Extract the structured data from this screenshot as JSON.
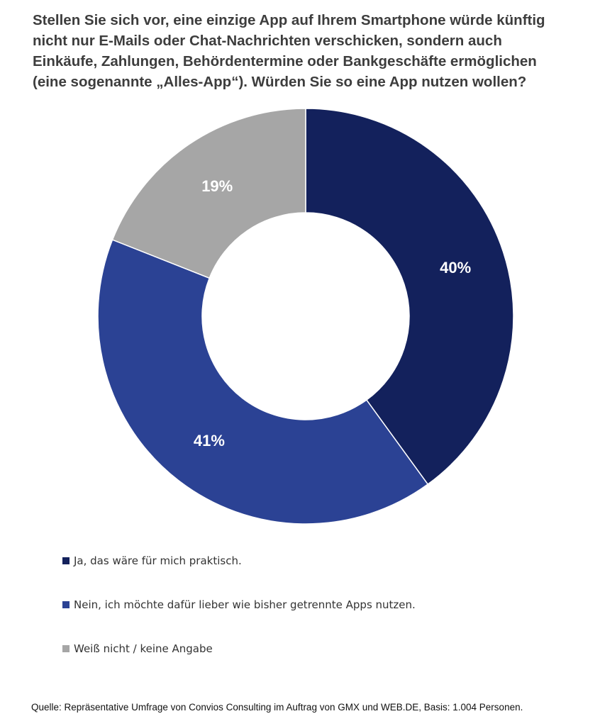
{
  "title": "Stellen Sie sich vor, eine einzige App auf Ihrem Smartphone würde künftig\nnicht nur E-Mails oder Chat-Nachrichten verschicken, sondern auch\nEinkäufe, Zahlungen, Behördentermine oder Bankgeschäfte ermöglichen\n(eine sogenannte „Alles-App“). Würden Sie so eine App nutzen wollen?",
  "source": "Quelle: Repräsentative Umfrage von Convios Consulting  im Auftrag von GMX und WEB.DE, Basis: 1.004 Personen.",
  "chart_data": {
    "type": "pie",
    "variant": "donut",
    "unit": "%",
    "slices": [
      {
        "label": "Ja, das wäre für mich praktisch.",
        "value": 40,
        "value_label": "40%",
        "color": "#13215c"
      },
      {
        "label": "Nein, ich möchte dafür lieber wie bisher getrennte Apps nutzen.",
        "value": 41,
        "value_label": "41%",
        "color": "#2b4294"
      },
      {
        "label": "Weiß nicht / keine Angabe",
        "value": 19,
        "value_label": "19%",
        "color": "#a6a6a6"
      }
    ],
    "legend_position": "bottom-left"
  }
}
